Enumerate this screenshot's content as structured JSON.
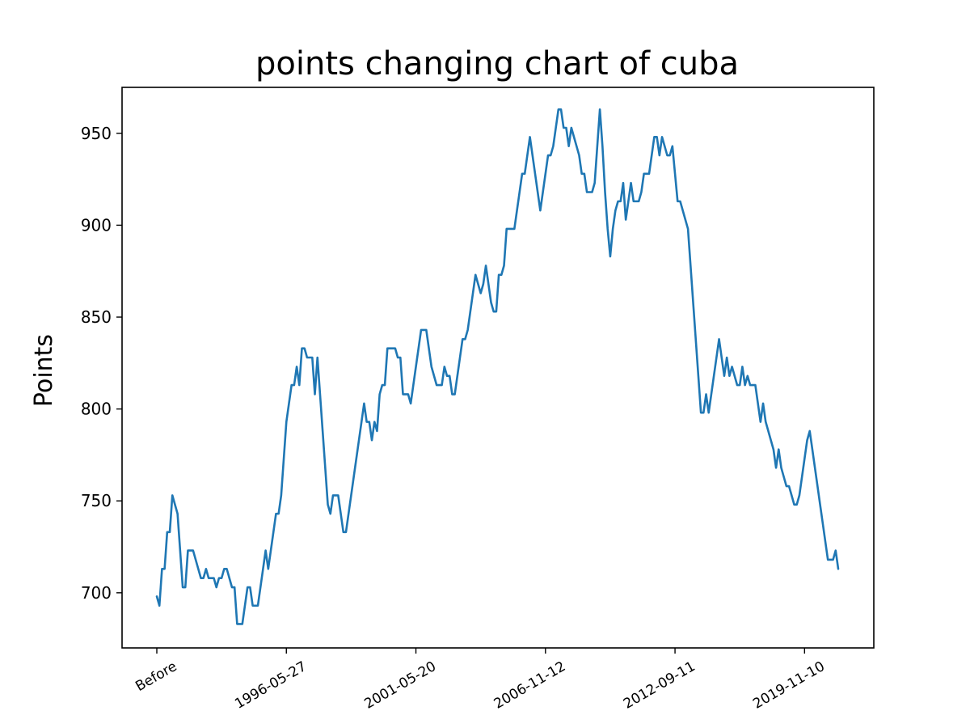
{
  "chart_data": {
    "type": "line",
    "title": "points changing chart of cuba",
    "xlabel": "",
    "ylabel": "Points",
    "ylim": [
      670,
      975
    ],
    "grid": false,
    "x_tick_labels": [
      "Before",
      "1996-05-27",
      "2001-05-20",
      "2006-11-12",
      "2012-09-11",
      "2019-11-10"
    ],
    "x_tick_index": [
      0,
      50,
      100,
      150,
      200,
      250
    ],
    "y_ticks": [
      700,
      750,
      800,
      850,
      900,
      950
    ],
    "series": [
      {
        "color": "#1f77b4",
        "values": [
          698,
          693,
          713,
          713,
          733,
          733,
          753,
          748,
          743,
          723,
          703,
          703,
          723,
          723,
          723,
          718,
          713,
          708,
          708,
          713,
          708,
          708,
          708,
          703,
          708,
          708,
          713,
          713,
          708,
          703,
          703,
          683,
          683,
          683,
          693,
          703,
          703,
          693,
          693,
          693,
          703,
          713,
          723,
          713,
          723,
          733,
          743,
          743,
          753,
          773,
          793,
          803,
          813,
          813,
          823,
          813,
          833,
          833,
          828,
          828,
          828,
          808,
          828,
          808,
          788,
          768,
          748,
          743,
          753,
          753,
          753,
          743,
          733,
          733,
          743,
          753,
          763,
          773,
          783,
          793,
          803,
          793,
          793,
          783,
          793,
          788,
          808,
          813,
          813,
          833,
          833,
          833,
          833,
          828,
          828,
          808,
          808,
          808,
          803,
          813,
          823,
          833,
          843,
          843,
          843,
          833,
          823,
          818,
          813,
          813,
          813,
          823,
          818,
          818,
          808,
          808,
          818,
          828,
          838,
          838,
          843,
          853,
          863,
          873,
          868,
          863,
          868,
          878,
          868,
          858,
          853,
          853,
          873,
          873,
          878,
          898,
          898,
          898,
          898,
          908,
          918,
          928,
          928,
          938,
          948,
          938,
          928,
          918,
          908,
          918,
          928,
          938,
          938,
          943,
          953,
          963,
          963,
          953,
          953,
          943,
          953,
          948,
          943,
          938,
          928,
          928,
          918,
          918,
          918,
          923,
          943,
          963,
          943,
          918,
          898,
          883,
          898,
          908,
          913,
          913,
          923,
          903,
          913,
          923,
          913,
          913,
          913,
          918,
          928,
          928,
          928,
          938,
          948,
          948,
          938,
          948,
          943,
          938,
          938,
          943,
          928,
          913,
          913,
          908,
          903,
          898,
          878,
          858,
          838,
          818,
          798,
          798,
          808,
          798,
          808,
          818,
          828,
          838,
          828,
          818,
          828,
          818,
          823,
          818,
          813,
          813,
          823,
          813,
          818,
          813,
          813,
          813,
          803,
          793,
          803,
          793,
          788,
          783,
          778,
          768,
          778,
          768,
          763,
          758,
          758,
          753,
          748,
          748,
          753,
          763,
          773,
          783,
          788,
          778,
          768,
          758,
          748,
          738,
          728,
          718,
          718,
          718,
          723,
          713
        ]
      }
    ]
  }
}
